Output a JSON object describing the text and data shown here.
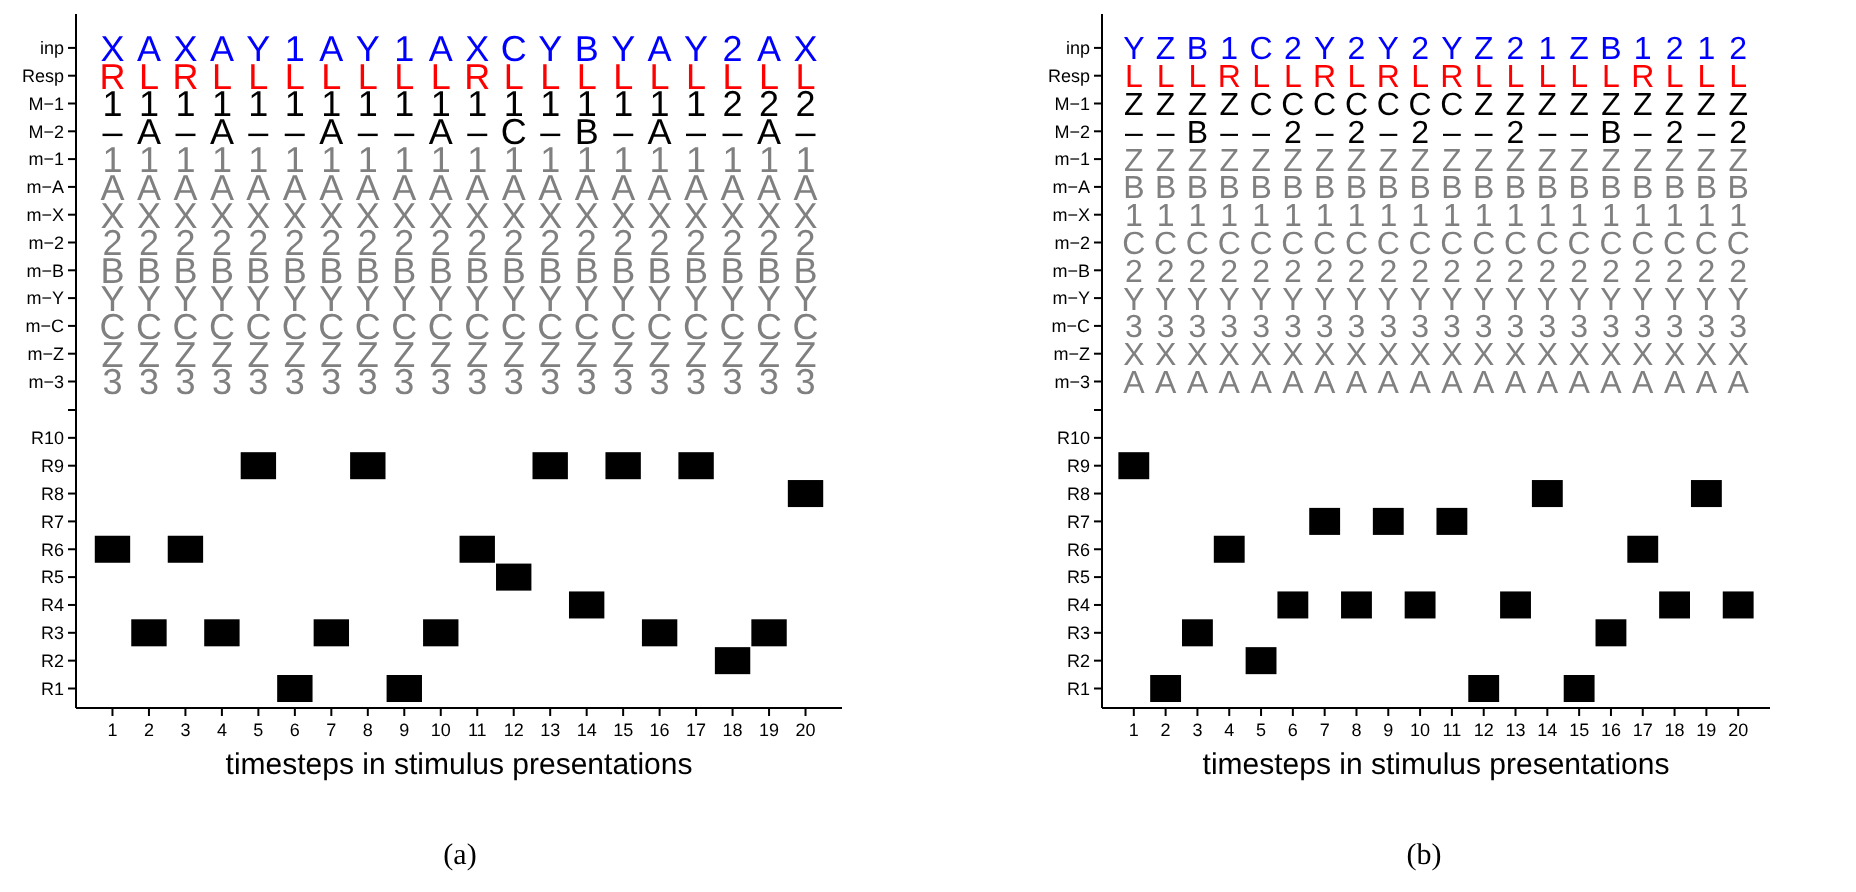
{
  "chart_data": [
    {
      "type": "other",
      "categories": [
        null,
        null,
        null,
        null,
        null,
        null,
        null,
        null,
        null,
        null,
        null,
        null,
        null,
        null,
        null,
        null,
        null,
        null,
        null,
        null
      ],
      "y_categories": [
        "inp",
        "Resp",
        "M−1",
        "M−2",
        "m−1",
        "m−A",
        "m−X",
        "m−2",
        "m−B",
        "m−Y",
        "m−C",
        "m−Z",
        "m−3"
      ],
      "colors": [
        "#0000ff",
        "#ff0000",
        "#000000",
        "#000000",
        "#808080",
        "#808080",
        "#808080",
        "#808080",
        "#808080",
        "#808080",
        "#808080",
        "#808080",
        "#808080"
      ],
      "cell_labels": [
        [
          "X",
          "A",
          "X",
          "A",
          "Y",
          "1",
          "A",
          "Y",
          "1",
          "A",
          "X",
          "C",
          "Y",
          "B",
          "Y",
          "A",
          "Y",
          "2",
          "A",
          "X"
        ],
        [
          "R",
          "L",
          "R",
          "L",
          "L",
          "L",
          "L",
          "L",
          "L",
          "L",
          "R",
          "L",
          "L",
          "L",
          "L",
          "L",
          "L",
          "L",
          "L",
          "L"
        ],
        [
          "1",
          "1",
          "1",
          "1",
          "1",
          "1",
          "1",
          "1",
          "1",
          "1",
          "1",
          "1",
          "1",
          "1",
          "1",
          "1",
          "1",
          "2",
          "2",
          "2"
        ],
        [
          "–",
          "A",
          "–",
          "A",
          "–",
          "–",
          "A",
          "–",
          "–",
          "A",
          "–",
          "C",
          "–",
          "B",
          "–",
          "A",
          "–",
          "–",
          "A",
          "–"
        ],
        [
          "1",
          "1",
          "1",
          "1",
          "1",
          "1",
          "1",
          "1",
          "1",
          "1",
          "1",
          "1",
          "1",
          "1",
          "1",
          "1",
          "1",
          "1",
          "1",
          "1"
        ],
        [
          "A",
          "A",
          "A",
          "A",
          "A",
          "A",
          "A",
          "A",
          "A",
          "A",
          "A",
          "A",
          "A",
          "A",
          "A",
          "A",
          "A",
          "A",
          "A",
          "A"
        ],
        [
          "X",
          "X",
          "X",
          "X",
          "X",
          "X",
          "X",
          "X",
          "X",
          "X",
          "X",
          "X",
          "X",
          "X",
          "X",
          "X",
          "X",
          "X",
          "X",
          "X"
        ],
        [
          "2",
          "2",
          "2",
          "2",
          "2",
          "2",
          "2",
          "2",
          "2",
          "2",
          "2",
          "2",
          "2",
          "2",
          "2",
          "2",
          "2",
          "2",
          "2",
          "2"
        ],
        [
          "B",
          "B",
          "B",
          "B",
          "B",
          "B",
          "B",
          "B",
          "B",
          "B",
          "B",
          "B",
          "B",
          "B",
          "B",
          "B",
          "B",
          "B",
          "B",
          "B"
        ],
        [
          "Y",
          "Y",
          "Y",
          "Y",
          "Y",
          "Y",
          "Y",
          "Y",
          "Y",
          "Y",
          "Y",
          "Y",
          "Y",
          "Y",
          "Y",
          "Y",
          "Y",
          "Y",
          "Y",
          "Y"
        ],
        [
          "C",
          "C",
          "C",
          "C",
          "C",
          "C",
          "C",
          "C",
          "C",
          "C",
          "C",
          "C",
          "C",
          "C",
          "C",
          "C",
          "C",
          "C",
          "C",
          "C"
        ],
        [
          "Z",
          "Z",
          "Z",
          "Z",
          "Z",
          "Z",
          "Z",
          "Z",
          "Z",
          "Z",
          "Z",
          "Z",
          "Z",
          "Z",
          "Z",
          "Z",
          "Z",
          "Z",
          "Z",
          "Z"
        ],
        [
          "3",
          "3",
          "3",
          "3",
          "3",
          "3",
          "3",
          "3",
          "3",
          "3",
          "3",
          "3",
          "3",
          "3",
          "3",
          "3",
          "3",
          "3",
          "3",
          "3"
        ]
      ]
    },
    {
      "type": "scatter",
      "orientation": "horizontal",
      "categories": [
        "R10",
        "R9",
        "R8",
        "R7",
        "R6",
        "R5",
        "R4",
        "R3",
        "R2",
        "R1"
      ],
      "marker": "square",
      "xlim": [
        0,
        21
      ],
      "xticks": [
        1,
        2,
        3,
        4,
        5,
        6,
        7,
        8,
        9,
        10,
        11,
        12,
        13,
        14,
        15,
        16,
        17,
        18,
        19,
        20
      ],
      "series": [
        {
          "color": "#000000",
          "values": [
            null,
            5,
            20,
            null,
            1,
            12,
            14,
            2,
            18,
            6
          ]
        },
        {
          "color": "#000000",
          "values": [
            null,
            8,
            null,
            null,
            3,
            null,
            null,
            4,
            null,
            9
          ]
        },
        {
          "color": "#000000",
          "values": [
            null,
            13,
            null,
            null,
            11,
            null,
            null,
            7,
            null,
            null
          ]
        },
        {
          "color": "#000000",
          "values": [
            null,
            15,
            null,
            null,
            null,
            null,
            null,
            10,
            null,
            null
          ]
        },
        {
          "color": "#000000",
          "values": [
            null,
            17,
            null,
            null,
            null,
            null,
            null,
            16,
            null,
            null
          ]
        },
        {
          "color": "#000000",
          "values": [
            null,
            null,
            null,
            null,
            null,
            null,
            null,
            19,
            null,
            null
          ]
        }
      ],
      "xlabel": "timesteps in stimulus presentations",
      "annotations": [
        "(a)"
      ]
    },
    {
      "type": "other",
      "categories": [
        null,
        null,
        null,
        null,
        null,
        null,
        null,
        null,
        null,
        null,
        null,
        null,
        null,
        null,
        null,
        null,
        null,
        null,
        null,
        null
      ],
      "y_categories": [
        "inp",
        "Resp",
        "M−1",
        "M−2",
        "m−1",
        "m−A",
        "m−X",
        "m−2",
        "m−B",
        "m−Y",
        "m−C",
        "m−Z",
        "m−3"
      ],
      "colors": [
        "#0000ff",
        "#ff0000",
        "#000000",
        "#000000",
        "#808080",
        "#808080",
        "#808080",
        "#808080",
        "#808080",
        "#808080",
        "#808080",
        "#808080",
        "#808080"
      ],
      "cell_labels": [
        [
          "Y",
          "Z",
          "B",
          "1",
          "C",
          "2",
          "Y",
          "2",
          "Y",
          "2",
          "Y",
          "Z",
          "2",
          "1",
          "Z",
          "B",
          "1",
          "2",
          "1",
          "2"
        ],
        [
          "L",
          "L",
          "L",
          "R",
          "L",
          "L",
          "R",
          "L",
          "R",
          "L",
          "R",
          "L",
          "L",
          "L",
          "L",
          "L",
          "R",
          "L",
          "L",
          "L"
        ],
        [
          "Z",
          "Z",
          "Z",
          "Z",
          "C",
          "C",
          "C",
          "C",
          "C",
          "C",
          "C",
          "Z",
          "Z",
          "Z",
          "Z",
          "Z",
          "Z",
          "Z",
          "Z",
          "Z"
        ],
        [
          "–",
          "–",
          "B",
          "–",
          "–",
          "2",
          "–",
          "2",
          "–",
          "2",
          "–",
          "–",
          "2",
          "–",
          "–",
          "B",
          "–",
          "2",
          "–",
          "2"
        ],
        [
          "Z",
          "Z",
          "Z",
          "Z",
          "Z",
          "Z",
          "Z",
          "Z",
          "Z",
          "Z",
          "Z",
          "Z",
          "Z",
          "Z",
          "Z",
          "Z",
          "Z",
          "Z",
          "Z",
          "Z"
        ],
        [
          "B",
          "B",
          "B",
          "B",
          "B",
          "B",
          "B",
          "B",
          "B",
          "B",
          "B",
          "B",
          "B",
          "B",
          "B",
          "B",
          "B",
          "B",
          "B",
          "B"
        ],
        [
          "1",
          "1",
          "1",
          "1",
          "1",
          "1",
          "1",
          "1",
          "1",
          "1",
          "1",
          "1",
          "1",
          "1",
          "1",
          "1",
          "1",
          "1",
          "1",
          "1"
        ],
        [
          "C",
          "C",
          "C",
          "C",
          "C",
          "C",
          "C",
          "C",
          "C",
          "C",
          "C",
          "C",
          "C",
          "C",
          "C",
          "C",
          "C",
          "C",
          "C",
          "C"
        ],
        [
          "2",
          "2",
          "2",
          "2",
          "2",
          "2",
          "2",
          "2",
          "2",
          "2",
          "2",
          "2",
          "2",
          "2",
          "2",
          "2",
          "2",
          "2",
          "2",
          "2"
        ],
        [
          "Y",
          "Y",
          "Y",
          "Y",
          "Y",
          "Y",
          "Y",
          "Y",
          "Y",
          "Y",
          "Y",
          "Y",
          "Y",
          "Y",
          "Y",
          "Y",
          "Y",
          "Y",
          "Y",
          "Y"
        ],
        [
          "3",
          "3",
          "3",
          "3",
          "3",
          "3",
          "3",
          "3",
          "3",
          "3",
          "3",
          "3",
          "3",
          "3",
          "3",
          "3",
          "3",
          "3",
          "3",
          "3"
        ],
        [
          "X",
          "X",
          "X",
          "X",
          "X",
          "X",
          "X",
          "X",
          "X",
          "X",
          "X",
          "X",
          "X",
          "X",
          "X",
          "X",
          "X",
          "X",
          "X",
          "X"
        ],
        [
          "A",
          "A",
          "A",
          "A",
          "A",
          "A",
          "A",
          "A",
          "A",
          "A",
          "A",
          "A",
          "A",
          "A",
          "A",
          "A",
          "A",
          "A",
          "A",
          "A"
        ]
      ]
    },
    {
      "type": "scatter",
      "orientation": "horizontal",
      "categories": [
        "R10",
        "R9",
        "R8",
        "R7",
        "R6",
        "R5",
        "R4",
        "R3",
        "R2",
        "R1"
      ],
      "marker": "square",
      "xlim": [
        0,
        21
      ],
      "xticks": [
        1,
        2,
        3,
        4,
        5,
        6,
        7,
        8,
        9,
        10,
        11,
        12,
        13,
        14,
        15,
        16,
        17,
        18,
        19,
        20
      ],
      "series": [
        {
          "color": "#000000",
          "values": [
            null,
            1,
            14,
            7,
            4,
            null,
            6,
            3,
            5,
            2
          ]
        },
        {
          "color": "#000000",
          "values": [
            null,
            null,
            19,
            9,
            17,
            null,
            8,
            16,
            null,
            12
          ]
        },
        {
          "color": "#000000",
          "values": [
            null,
            null,
            null,
            11,
            null,
            null,
            10,
            null,
            null,
            15
          ]
        },
        {
          "color": "#000000",
          "values": [
            null,
            null,
            null,
            null,
            null,
            null,
            13,
            null,
            null,
            null
          ]
        },
        {
          "color": "#000000",
          "values": [
            null,
            null,
            null,
            null,
            null,
            null,
            18,
            null,
            null,
            null
          ]
        },
        {
          "color": "#000000",
          "values": [
            null,
            null,
            null,
            null,
            null,
            null,
            20,
            null,
            null,
            null
          ]
        }
      ],
      "xlabel": "timesteps in stimulus presentations",
      "annotations": [
        "(b)"
      ]
    }
  ]
}
